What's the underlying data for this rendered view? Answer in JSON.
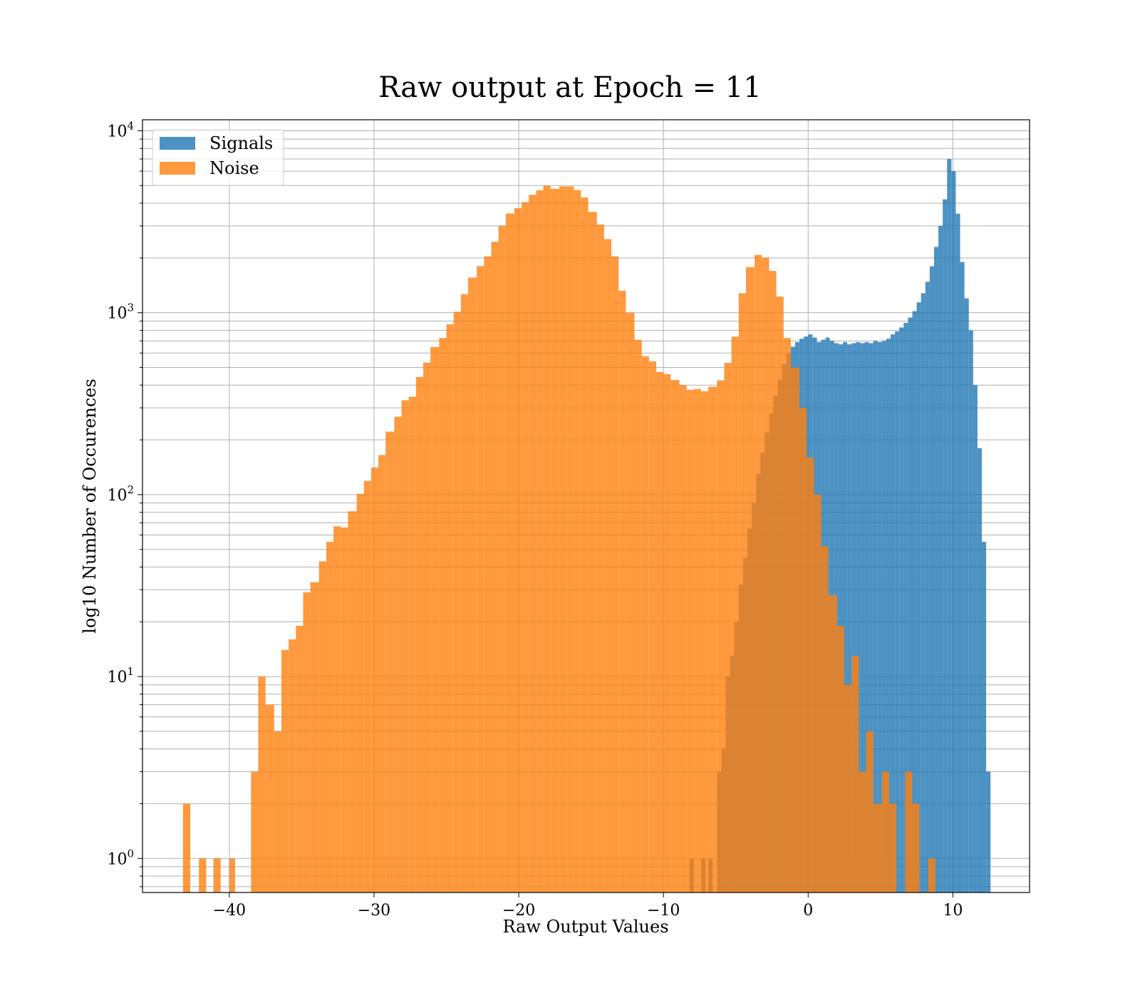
{
  "chart_data": {
    "type": "bar",
    "title": "Raw output at Epoch = 11",
    "xlabel": "Raw Output Values",
    "ylabel": "log10 Number of Occurences",
    "xlim": [
      -46,
      15.3
    ],
    "ylim": [
      0.65,
      11500
    ],
    "y_scale": "log",
    "grid": true,
    "legend": {
      "placement": "top-left",
      "entries": [
        "Signals",
        "Noise"
      ]
    },
    "x_ticks": [
      -40,
      -30,
      -20,
      -10,
      0,
      10
    ],
    "x_tick_labels": [
      "−40",
      "−30",
      "−20",
      "−10",
      "0",
      "10"
    ],
    "y_ticks": [
      {
        "base": "10",
        "exp": "0",
        "value": 1
      },
      {
        "base": "10",
        "exp": "1",
        "value": 10
      },
      {
        "base": "10",
        "exp": "2",
        "value": 100
      },
      {
        "base": "10",
        "exp": "3",
        "value": 1000
      },
      {
        "base": "10",
        "exp": "4",
        "value": 10000
      }
    ],
    "series": [
      {
        "name": "Signals",
        "color": "#1f77b4",
        "opacity": 0.8,
        "bins": [
          [
            -8.2,
            -7.9,
            1
          ],
          [
            -7.4,
            -7.1,
            1
          ],
          [
            -6.9,
            -6.6,
            1
          ],
          [
            -6.3,
            -6.0,
            3
          ],
          [
            -6.0,
            -5.7,
            4
          ],
          [
            -5.7,
            -5.4,
            10
          ],
          [
            -5.4,
            -5.1,
            13
          ],
          [
            -5.1,
            -4.8,
            20
          ],
          [
            -4.8,
            -4.5,
            32
          ],
          [
            -4.5,
            -4.2,
            45
          ],
          [
            -4.2,
            -3.9,
            65
          ],
          [
            -3.9,
            -3.6,
            90
          ],
          [
            -3.6,
            -3.3,
            130
          ],
          [
            -3.3,
            -3.0,
            170
          ],
          [
            -3.0,
            -2.7,
            220
          ],
          [
            -2.7,
            -2.4,
            280
          ],
          [
            -2.4,
            -2.1,
            350
          ],
          [
            -2.1,
            -1.8,
            430
          ],
          [
            -1.8,
            -1.5,
            520
          ],
          [
            -1.5,
            -1.2,
            600
          ],
          [
            -1.2,
            -0.9,
            650
          ],
          [
            -0.9,
            -0.6,
            690
          ],
          [
            -0.6,
            -0.3,
            720
          ],
          [
            -0.3,
            0.0,
            740
          ],
          [
            0.0,
            0.3,
            760
          ],
          [
            0.3,
            0.6,
            730
          ],
          [
            0.6,
            0.9,
            690
          ],
          [
            0.9,
            1.2,
            710
          ],
          [
            1.2,
            1.5,
            730
          ],
          [
            1.5,
            1.8,
            700
          ],
          [
            1.8,
            2.1,
            680
          ],
          [
            2.1,
            2.4,
            670
          ],
          [
            2.4,
            2.7,
            690
          ],
          [
            2.7,
            3.0,
            670
          ],
          [
            3.0,
            3.3,
            680
          ],
          [
            3.3,
            3.6,
            690
          ],
          [
            3.6,
            3.9,
            680
          ],
          [
            3.9,
            4.2,
            690
          ],
          [
            4.2,
            4.5,
            680
          ],
          [
            4.5,
            4.8,
            700
          ],
          [
            4.8,
            5.1,
            690
          ],
          [
            5.1,
            5.4,
            700
          ],
          [
            5.4,
            5.7,
            720
          ],
          [
            5.7,
            6.0,
            760
          ],
          [
            6.0,
            6.3,
            790
          ],
          [
            6.3,
            6.6,
            830
          ],
          [
            6.6,
            6.9,
            880
          ],
          [
            6.9,
            7.2,
            940
          ],
          [
            7.2,
            7.5,
            1020
          ],
          [
            7.5,
            7.8,
            1140
          ],
          [
            7.8,
            8.1,
            1280
          ],
          [
            8.1,
            8.4,
            1480
          ],
          [
            8.4,
            8.7,
            1800
          ],
          [
            8.7,
            9.0,
            2300
          ],
          [
            9.0,
            9.3,
            3000
          ],
          [
            9.3,
            9.6,
            4200
          ],
          [
            9.6,
            9.9,
            7000
          ],
          [
            9.9,
            10.2,
            6000
          ],
          [
            10.2,
            10.5,
            3500
          ],
          [
            10.5,
            10.8,
            1900
          ],
          [
            10.8,
            11.1,
            1200
          ],
          [
            11.1,
            11.4,
            800
          ],
          [
            11.4,
            11.7,
            400
          ],
          [
            11.7,
            12.0,
            180
          ],
          [
            12.0,
            12.3,
            55
          ],
          [
            12.3,
            12.6,
            3
          ]
        ]
      },
      {
        "name": "Noise",
        "color": "#ff7f0e",
        "opacity": 0.8,
        "bins": [
          [
            -43.2,
            -42.7,
            2
          ],
          [
            -42.1,
            -41.6,
            1
          ],
          [
            -41.1,
            -40.6,
            1
          ],
          [
            -40.0,
            -39.6,
            1
          ],
          [
            -38.5,
            -38.0,
            3
          ],
          [
            -38.0,
            -37.5,
            10
          ],
          [
            -37.5,
            -36.9,
            7
          ],
          [
            -36.9,
            -36.4,
            5
          ],
          [
            -36.4,
            -35.9,
            14
          ],
          [
            -35.9,
            -35.4,
            16
          ],
          [
            -35.4,
            -34.9,
            19
          ],
          [
            -34.9,
            -34.4,
            29
          ],
          [
            -34.4,
            -33.8,
            33
          ],
          [
            -33.8,
            -33.3,
            43
          ],
          [
            -33.3,
            -32.8,
            55
          ],
          [
            -32.8,
            -32.3,
            67
          ],
          [
            -32.3,
            -31.8,
            66
          ],
          [
            -31.8,
            -31.2,
            81
          ],
          [
            -31.2,
            -30.7,
            101
          ],
          [
            -30.7,
            -30.2,
            119
          ],
          [
            -30.2,
            -29.7,
            141
          ],
          [
            -29.7,
            -29.2,
            165
          ],
          [
            -29.2,
            -28.6,
            222
          ],
          [
            -28.6,
            -28.1,
            268
          ],
          [
            -28.1,
            -27.6,
            330
          ],
          [
            -27.6,
            -27.1,
            345
          ],
          [
            -27.1,
            -26.6,
            443
          ],
          [
            -26.6,
            -26.1,
            532
          ],
          [
            -26.1,
            -25.5,
            648
          ],
          [
            -25.5,
            -25.0,
            726
          ],
          [
            -25.0,
            -24.5,
            863
          ],
          [
            -24.5,
            -24.0,
            1012
          ],
          [
            -24.0,
            -23.5,
            1264
          ],
          [
            -23.5,
            -22.9,
            1560
          ],
          [
            -22.9,
            -22.4,
            1806
          ],
          [
            -22.4,
            -21.9,
            2039
          ],
          [
            -21.9,
            -21.4,
            2453
          ],
          [
            -21.4,
            -20.9,
            3004
          ],
          [
            -20.9,
            -20.3,
            3511
          ],
          [
            -20.3,
            -19.8,
            3753
          ],
          [
            -19.8,
            -19.3,
            4056
          ],
          [
            -19.3,
            -18.8,
            4444
          ],
          [
            -18.8,
            -18.3,
            4710
          ],
          [
            -18.3,
            -17.8,
            5000
          ],
          [
            -17.8,
            -17.2,
            4800
          ],
          [
            -17.2,
            -16.7,
            4950
          ],
          [
            -16.7,
            -16.2,
            4950
          ],
          [
            -16.2,
            -15.7,
            4726
          ],
          [
            -15.7,
            -15.2,
            4296
          ],
          [
            -15.2,
            -14.6,
            3581
          ],
          [
            -14.6,
            -14.1,
            3050
          ],
          [
            -14.1,
            -13.6,
            2539
          ],
          [
            -13.6,
            -13.1,
            2040
          ],
          [
            -13.1,
            -12.6,
            1322
          ],
          [
            -12.6,
            -12.0,
            1001
          ],
          [
            -12.0,
            -11.5,
            709
          ],
          [
            -11.5,
            -11.0,
            576
          ],
          [
            -11.0,
            -10.5,
            540
          ],
          [
            -10.5,
            -10.0,
            472
          ],
          [
            -10.0,
            -9.5,
            460
          ],
          [
            -9.5,
            -8.9,
            427
          ],
          [
            -8.9,
            -8.4,
            400
          ],
          [
            -8.4,
            -7.9,
            377
          ],
          [
            -7.9,
            -7.4,
            381
          ],
          [
            -7.4,
            -6.9,
            370
          ],
          [
            -6.9,
            -6.3,
            392
          ],
          [
            -6.3,
            -5.8,
            425
          ],
          [
            -5.8,
            -5.3,
            530
          ],
          [
            -5.3,
            -4.8,
            738
          ],
          [
            -4.8,
            -4.3,
            1280
          ],
          [
            -4.3,
            -3.7,
            1780
          ],
          [
            -3.7,
            -3.2,
            2078
          ],
          [
            -3.2,
            -2.7,
            2008
          ],
          [
            -2.7,
            -2.2,
            1697
          ],
          [
            -2.2,
            -1.7,
            1227
          ],
          [
            -1.7,
            -1.2,
            726
          ],
          [
            -1.2,
            -0.6,
            500
          ],
          [
            -0.6,
            -0.1,
            300
          ],
          [
            -0.1,
            0.4,
            160
          ],
          [
            0.4,
            0.9,
            100
          ],
          [
            0.9,
            1.4,
            52
          ],
          [
            1.4,
            2.0,
            28
          ],
          [
            2.0,
            2.5,
            19
          ],
          [
            2.5,
            3.0,
            9
          ],
          [
            3.0,
            3.5,
            13
          ],
          [
            3.5,
            4.0,
            3
          ],
          [
            4.0,
            4.5,
            5
          ],
          [
            4.5,
            5.1,
            2
          ],
          [
            5.1,
            5.6,
            3
          ],
          [
            5.6,
            6.1,
            2
          ],
          [
            6.7,
            7.2,
            3
          ],
          [
            7.2,
            7.7,
            2
          ],
          [
            8.3,
            8.8,
            1
          ]
        ]
      }
    ]
  }
}
